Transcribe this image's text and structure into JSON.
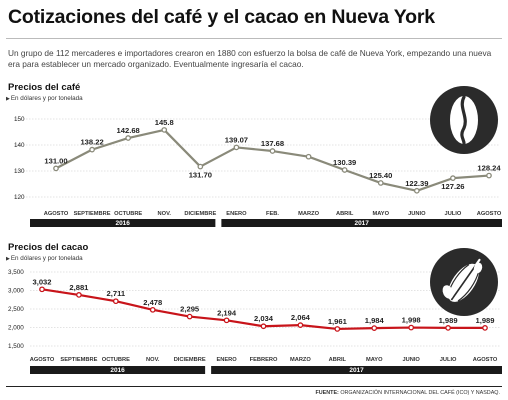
{
  "title": "Cotizaciones del café y el cacao en Nueva York",
  "intro": "Un grupo de 112 mercaderes e importadores crearon en 1880 con esfuerzo la bolsa de café de Nueva York, empezando una nueva era para establecer un mercado organizado. Eventualmente ingresaría el cacao.",
  "source_label": "FUENTE:",
  "source_text": "ORGANIZACIÓN INTERNACIONAL DEL CAFÉ (ICO) Y NASDAQ.",
  "colors": {
    "coffee_line": "#8a8a7a",
    "cocoa_line": "#c8141a",
    "year_bar": "#1a1a1a",
    "icon_bg": "#2b2b2b"
  },
  "icons": {
    "coffee": "coffee-bean-icon",
    "cocoa": "cocoa-pod-icon"
  },
  "chart_data": [
    {
      "type": "line",
      "title": "Precios del café",
      "subtitle": "En dólares y por tonelada",
      "categories": [
        "AGOSTO",
        "SEPTIEMBRE",
        "OCTUBRE",
        "NOV.",
        "DICIEMBRE",
        "ENERO",
        "FEB.",
        "MARZO",
        "ABRIL",
        "MAYO",
        "JUNIO",
        "JULIO",
        "AGOSTO"
      ],
      "values": [
        131.0,
        138.22,
        142.68,
        145.8,
        131.7,
        139.07,
        137.68,
        135.5,
        130.39,
        125.4,
        122.39,
        127.26,
        128.24
      ],
      "labels": [
        "131.00",
        "138.22",
        "142.68",
        "145.8",
        "131.70",
        "139.07",
        "137.68",
        "",
        "130.39",
        "125.40",
        "122.39",
        "127.26",
        "128.24"
      ],
      "ylim": [
        120,
        150
      ],
      "yticks": [
        "150",
        "140",
        "130",
        "120"
      ],
      "years": [
        {
          "label": "2016"
        },
        {
          "label": "2017"
        }
      ],
      "grid": true
    },
    {
      "type": "line",
      "title": "Precios del cacao",
      "subtitle": "En dólares y por tonelada",
      "categories": [
        "AGOSTO",
        "SEPTIEMBRE",
        "OCTUBRE",
        "NOV.",
        "DICIEMBRE",
        "ENERO",
        "FEBRERO",
        "MARZO",
        "ABRIL",
        "MAYO",
        "JUNIO",
        "JULIO",
        "AGOSTO"
      ],
      "values": [
        3032,
        2881,
        2711,
        2478,
        2295,
        2194,
        2034,
        2064,
        1961,
        1984,
        1998,
        1989,
        1989
      ],
      "labels": [
        "3,032",
        "2,881",
        "2,711",
        "2,478",
        "2,295",
        "2,194",
        "2,034",
        "2,064",
        "1,961",
        "1,984",
        "1,998",
        "1,989",
        "1,989"
      ],
      "ylim": [
        1500,
        3500
      ],
      "yticks": [
        "3,500",
        "3,000",
        "2,500",
        "2,000",
        "1,500"
      ],
      "years": [
        {
          "label": "2016"
        },
        {
          "label": "2017"
        }
      ],
      "grid": true
    }
  ]
}
